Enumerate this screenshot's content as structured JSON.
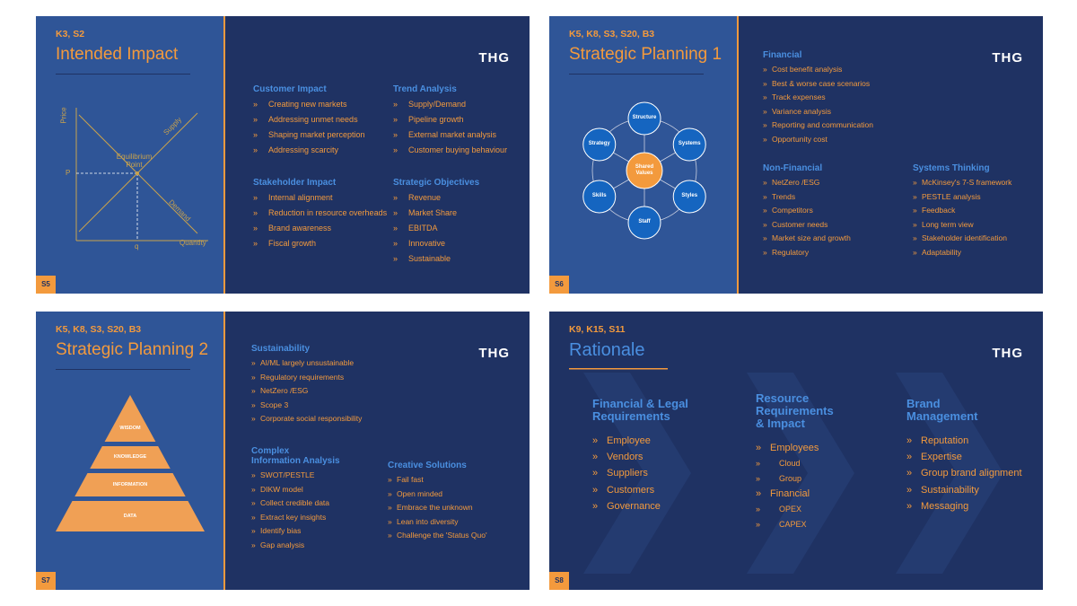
{
  "brand": "THG",
  "slides": [
    {
      "codes": "K3, S2",
      "title": "Intended Impact",
      "number": "S5",
      "diagram": {
        "y_axis": "Price",
        "x_axis": "Quantity",
        "supply": "Supply",
        "demand": "Demand",
        "equilibrium": "Equilibrium Point",
        "price_level": "P",
        "quantity_level": "q"
      },
      "sections": [
        {
          "heading": "Customer Impact",
          "items": [
            "Creating new markets",
            "Addressing unmet needs",
            "Shaping market perception",
            "Addressing scarcity"
          ]
        },
        {
          "heading": "Trend Analysis",
          "items": [
            "Supply/Demand",
            "Pipeline growth",
            "External market analysis",
            "Customer buying behaviour"
          ]
        },
        {
          "heading": "Stakeholder Impact",
          "items": [
            "Internal alignment",
            "Reduction in resource overheads",
            "Brand awareness",
            "Fiscal growth"
          ]
        },
        {
          "heading": "Strategic Objectives",
          "items": [
            "Revenue",
            "Market Share",
            "EBITDA",
            "Innovative",
            "Sustainable"
          ]
        }
      ]
    },
    {
      "codes": "K5, K8, S3, S20, B3",
      "title": "Strategic Planning 1",
      "number": "S6",
      "diagram": {
        "center": "Shared Values",
        "nodes": [
          "Structure",
          "Systems",
          "Styles",
          "Staff",
          "Skills",
          "Strategy"
        ]
      },
      "sections": [
        {
          "heading": "Financial",
          "items": [
            "Cost benefit analysis",
            "Best & worse case scenarios",
            "Track expenses",
            "Variance analysis",
            "Reporting and communication",
            "Opportunity cost"
          ]
        },
        {
          "heading": "Non-Financial",
          "items": [
            "NetZero /ESG",
            "Trends",
            "Competitors",
            "Customer needs",
            "Market size and growth",
            "Regulatory"
          ]
        },
        {
          "heading": "Systems Thinking",
          "items": [
            "McKinsey's 7-S framework",
            "PESTLE analysis",
            "Feedback",
            "Long term view",
            "Stakeholder identification",
            "Adaptability"
          ]
        }
      ]
    },
    {
      "codes": "K5, K8, S3, S20, B3",
      "title": "Strategic Planning 2",
      "number": "S7",
      "diagram": {
        "levels": [
          "WISDOM",
          "KNOWLEDGE",
          "INFORMATION",
          "DATA"
        ]
      },
      "sections": [
        {
          "heading": "Sustainability",
          "items": [
            "AI/ML largely unsustainable",
            "Regulatory requirements",
            "NetZero /ESG",
            "Scope 3",
            "Corporate social responsibility"
          ]
        },
        {
          "heading": "Complex\nInformation Analysis",
          "items": [
            "SWOT/PESTLE",
            "DIKW model",
            "Collect credible data",
            "Extract key insights",
            "Identify bias",
            "Gap analysis"
          ]
        },
        {
          "heading": "Creative Solutions",
          "items": [
            "Fail fast",
            "Open minded",
            "Embrace the unknown",
            "Lean into diversity",
            "Challenge the 'Status Quo'"
          ]
        }
      ]
    },
    {
      "codes": "K9, K15, S11",
      "title": "Rationale",
      "number": "S8",
      "sections": [
        {
          "heading": "Financial & Legal\nRequirements",
          "items": [
            "Employee",
            "Vendors",
            "Suppliers",
            "Customers",
            "Governance"
          ]
        },
        {
          "heading": "Resource\nRequirements\n& Impact",
          "items": [
            {
              "text": "Employees",
              "sub": [
                "Cloud",
                "Group"
              ]
            },
            {
              "text": "Financial",
              "sub": [
                "OPEX",
                "CAPEX"
              ]
            }
          ]
        },
        {
          "heading": "Brand\nManagement",
          "items": [
            "Reputation",
            "Expertise",
            "Group brand alignment",
            "Sustainability",
            "Messaging"
          ]
        }
      ]
    }
  ]
}
